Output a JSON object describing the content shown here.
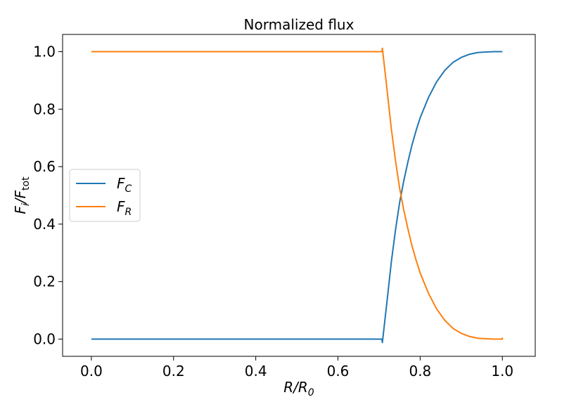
{
  "chart_data": {
    "type": "line",
    "title": "Normalized flux",
    "xlabel": {
      "main": "R/R",
      "sub": "0"
    },
    "ylabel": {
      "main": "F",
      "sub_i": "i",
      "mid": "/F",
      "sub_tot": "tot"
    },
    "xlim": [
      -0.07,
      1.08
    ],
    "ylim": [
      -0.06,
      1.06
    ],
    "x_ticks": [
      0.0,
      0.2,
      0.4,
      0.6,
      0.8,
      1.0
    ],
    "x_tick_labels": [
      "0.0",
      "0.2",
      "0.4",
      "0.6",
      "0.8",
      "1.0"
    ],
    "y_ticks": [
      0.0,
      0.2,
      0.4,
      0.6,
      0.8,
      1.0
    ],
    "y_tick_labels": [
      "0.0",
      "0.2",
      "0.4",
      "0.6",
      "0.8",
      "1.0"
    ],
    "grid": false,
    "legend_position": "center-left",
    "series": [
      {
        "name": "F_C",
        "legend_main": "F",
        "legend_sub": "C",
        "color": "#1f77b4",
        "points": [
          [
            0.0,
            0.0
          ],
          [
            0.1,
            0.0
          ],
          [
            0.2,
            0.0
          ],
          [
            0.3,
            0.0
          ],
          [
            0.4,
            0.0
          ],
          [
            0.5,
            0.0
          ],
          [
            0.6,
            0.0
          ],
          [
            0.7,
            0.0
          ],
          [
            0.707,
            0.0
          ],
          [
            0.708,
            -0.012
          ],
          [
            0.709,
            0.0
          ],
          [
            0.72,
            0.14
          ],
          [
            0.73,
            0.27
          ],
          [
            0.74,
            0.38
          ],
          [
            0.75,
            0.475
          ],
          [
            0.76,
            0.55
          ],
          [
            0.77,
            0.615
          ],
          [
            0.78,
            0.675
          ],
          [
            0.79,
            0.725
          ],
          [
            0.8,
            0.77
          ],
          [
            0.82,
            0.84
          ],
          [
            0.84,
            0.895
          ],
          [
            0.86,
            0.935
          ],
          [
            0.88,
            0.963
          ],
          [
            0.9,
            0.98
          ],
          [
            0.92,
            0.991
          ],
          [
            0.94,
            0.997
          ],
          [
            0.96,
            0.999
          ],
          [
            0.98,
            1.0
          ],
          [
            1.0,
            1.0
          ]
        ]
      },
      {
        "name": "F_R",
        "legend_main": "F",
        "legend_sub": "R",
        "color": "#ff7f0e",
        "points": [
          [
            0.0,
            1.0
          ],
          [
            0.1,
            1.0
          ],
          [
            0.2,
            1.0
          ],
          [
            0.3,
            1.0
          ],
          [
            0.4,
            1.0
          ],
          [
            0.5,
            1.0
          ],
          [
            0.6,
            1.0
          ],
          [
            0.7,
            1.0
          ],
          [
            0.707,
            1.0
          ],
          [
            0.708,
            1.012
          ],
          [
            0.709,
            1.0
          ],
          [
            0.72,
            0.86
          ],
          [
            0.73,
            0.73
          ],
          [
            0.74,
            0.62
          ],
          [
            0.75,
            0.525
          ],
          [
            0.76,
            0.45
          ],
          [
            0.77,
            0.385
          ],
          [
            0.78,
            0.325
          ],
          [
            0.79,
            0.275
          ],
          [
            0.8,
            0.23
          ],
          [
            0.82,
            0.16
          ],
          [
            0.84,
            0.105
          ],
          [
            0.86,
            0.065
          ],
          [
            0.88,
            0.037
          ],
          [
            0.9,
            0.02
          ],
          [
            0.92,
            0.009
          ],
          [
            0.94,
            0.003
          ],
          [
            0.96,
            0.001
          ],
          [
            0.98,
            0.0
          ],
          [
            1.0,
            0.0
          ],
          [
            1.0,
            0.005
          ]
        ]
      }
    ]
  }
}
